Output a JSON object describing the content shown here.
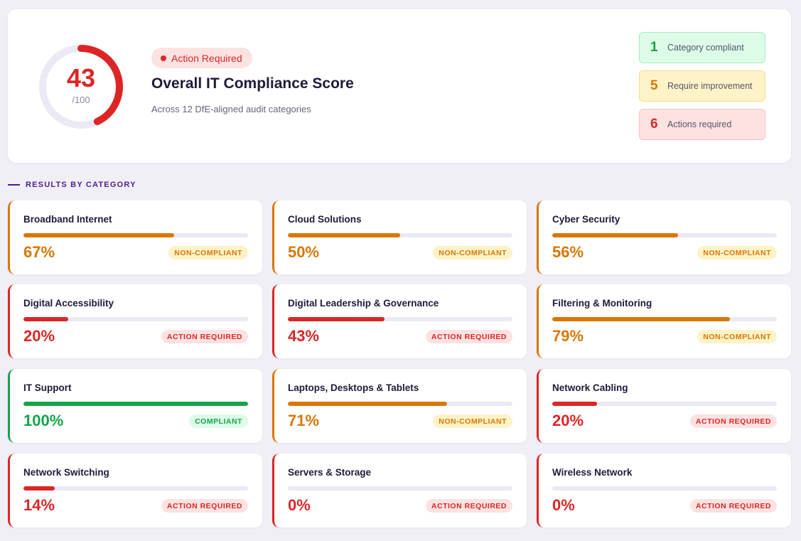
{
  "summary": {
    "score": "43",
    "score_max": "/100",
    "score_value": 43,
    "status": "Action Required",
    "title": "Overall IT Compliance Score",
    "subtitle": "Across 12 DfE-aligned audit categories",
    "colors": {
      "track": "#ebe9f3",
      "arc": "#dc2626"
    },
    "stats": [
      {
        "count": "1",
        "label": "Category compliant",
        "tone": "green"
      },
      {
        "count": "5",
        "label": "Require improvement",
        "tone": "amber"
      },
      {
        "count": "6",
        "label": "Actions required",
        "tone": "red"
      }
    ]
  },
  "section": {
    "title": "RESULTS BY CATEGORY"
  },
  "categories": [
    {
      "name": "Broadband Internet",
      "percent": "67%",
      "value": 67,
      "status": "NON-COMPLIANT",
      "tone": "amber"
    },
    {
      "name": "Cloud Solutions",
      "percent": "50%",
      "value": 50,
      "status": "NON-COMPLIANT",
      "tone": "amber"
    },
    {
      "name": "Cyber Security",
      "percent": "56%",
      "value": 56,
      "status": "NON-COMPLIANT",
      "tone": "amber"
    },
    {
      "name": "Digital Accessibility",
      "percent": "20%",
      "value": 20,
      "status": "ACTION REQUIRED",
      "tone": "red"
    },
    {
      "name": "Digital Leadership & Governance",
      "percent": "43%",
      "value": 43,
      "status": "ACTION REQUIRED",
      "tone": "red"
    },
    {
      "name": "Filtering & Monitoring",
      "percent": "79%",
      "value": 79,
      "status": "NON-COMPLIANT",
      "tone": "amber"
    },
    {
      "name": "IT Support",
      "percent": "100%",
      "value": 100,
      "status": "COMPLIANT",
      "tone": "green"
    },
    {
      "name": "Laptops, Desktops & Tablets",
      "percent": "71%",
      "value": 71,
      "status": "NON-COMPLIANT",
      "tone": "amber"
    },
    {
      "name": "Network Cabling",
      "percent": "20%",
      "value": 20,
      "status": "ACTION REQUIRED",
      "tone": "red"
    },
    {
      "name": "Network Switching",
      "percent": "14%",
      "value": 14,
      "status": "ACTION REQUIRED",
      "tone": "red"
    },
    {
      "name": "Servers & Storage",
      "percent": "0%",
      "value": 0,
      "status": "ACTION REQUIRED",
      "tone": "red"
    },
    {
      "name": "Wireless Network",
      "percent": "0%",
      "value": 0,
      "status": "ACTION REQUIRED",
      "tone": "red"
    }
  ]
}
